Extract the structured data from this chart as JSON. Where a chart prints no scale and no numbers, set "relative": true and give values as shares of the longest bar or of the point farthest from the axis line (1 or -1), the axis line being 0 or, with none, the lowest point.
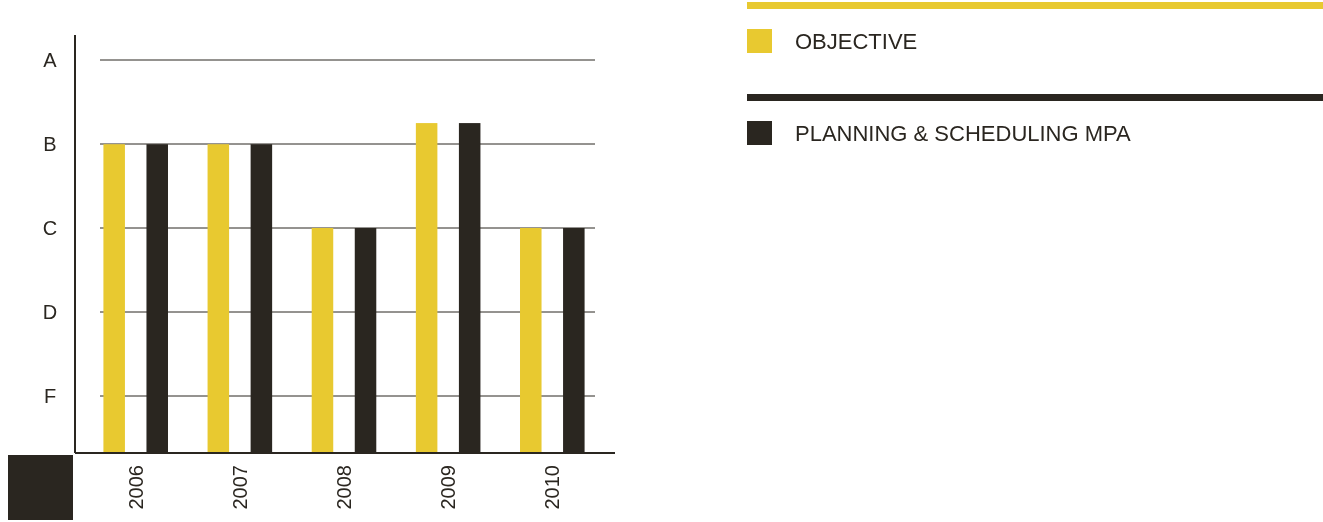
{
  "chart_data": {
    "type": "bar",
    "categories": [
      "2006",
      "2007",
      "2008",
      "2009",
      "2010"
    ],
    "series": [
      {
        "name": "OBJECTIVE",
        "color": "#e8c930",
        "values": [
          0.936,
          0.936,
          0.682,
          1,
          0.682
        ]
      },
      {
        "name": "PLANNING & SCHEDULING MPA",
        "color": "#2a2620",
        "values": [
          0.936,
          0.936,
          0.682,
          1,
          0.682
        ]
      }
    ],
    "relative": true,
    "annotations": [
      "A",
      "B",
      "C",
      "D",
      "F"
    ],
    "grid": true,
    "legend": "top right"
  }
}
